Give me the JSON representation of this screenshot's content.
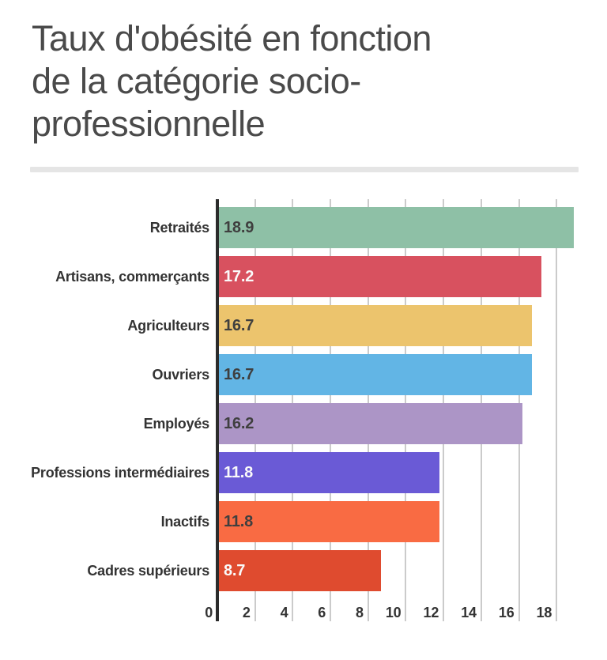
{
  "header": {
    "title_full": "Taux d'obésité en fonction de la catégorie socio-professionnelle",
    "title_lines": [
      "Taux d'obésité en fonction",
      "de la catégorie socio-",
      "professionnelle"
    ]
  },
  "chart_data": {
    "type": "bar",
    "orientation": "horizontal",
    "title": "Taux d'obésité en fonction de la catégorie socio-professionnelle",
    "categories": [
      "Retraités",
      "Artisans, commerçants",
      "Agriculteurs",
      "Ouvriers",
      "Employés",
      "Professions intermédiaires",
      "Inactifs",
      "Cadres supérieurs"
    ],
    "values": [
      18.9,
      17.2,
      16.7,
      16.7,
      16.2,
      11.8,
      11.8,
      8.7
    ],
    "value_labels": [
      "18.9",
      "17.2",
      "16.7",
      "16.7",
      "16.2",
      "11.8",
      "11.8",
      "8.7"
    ],
    "bar_colors": [
      "#8EC0A6",
      "#D8515F",
      "#ECC46D",
      "#62B5E5",
      "#AC95C6",
      "#6A5AD6",
      "#F96B43",
      "#DF4B2F"
    ],
    "value_label_colors": [
      "#3f3f3f",
      "#fafafa",
      "#3f3f3f",
      "#3f3f3f",
      "#3f3f3f",
      "#fafafa",
      "#3f3f3f",
      "#fafafa"
    ],
    "x_ticks": [
      0,
      2,
      4,
      6,
      8,
      10,
      12,
      14,
      16,
      18
    ],
    "xlim": [
      0,
      19.5
    ],
    "xlabel": "",
    "ylabel": "",
    "grid": "vertical gridlines every 2 units",
    "legend": "none",
    "value_labels_position": "inside-bar-left"
  },
  "style": {
    "background": "#ffffff",
    "title_color": "#4a4a4a",
    "divider_color": "#e5e5e5",
    "axis_line_color": "#2b2b2b",
    "gridline_color": "#cbcbcb",
    "category_label_color": "#333333",
    "axis_label_color": "#333333"
  }
}
